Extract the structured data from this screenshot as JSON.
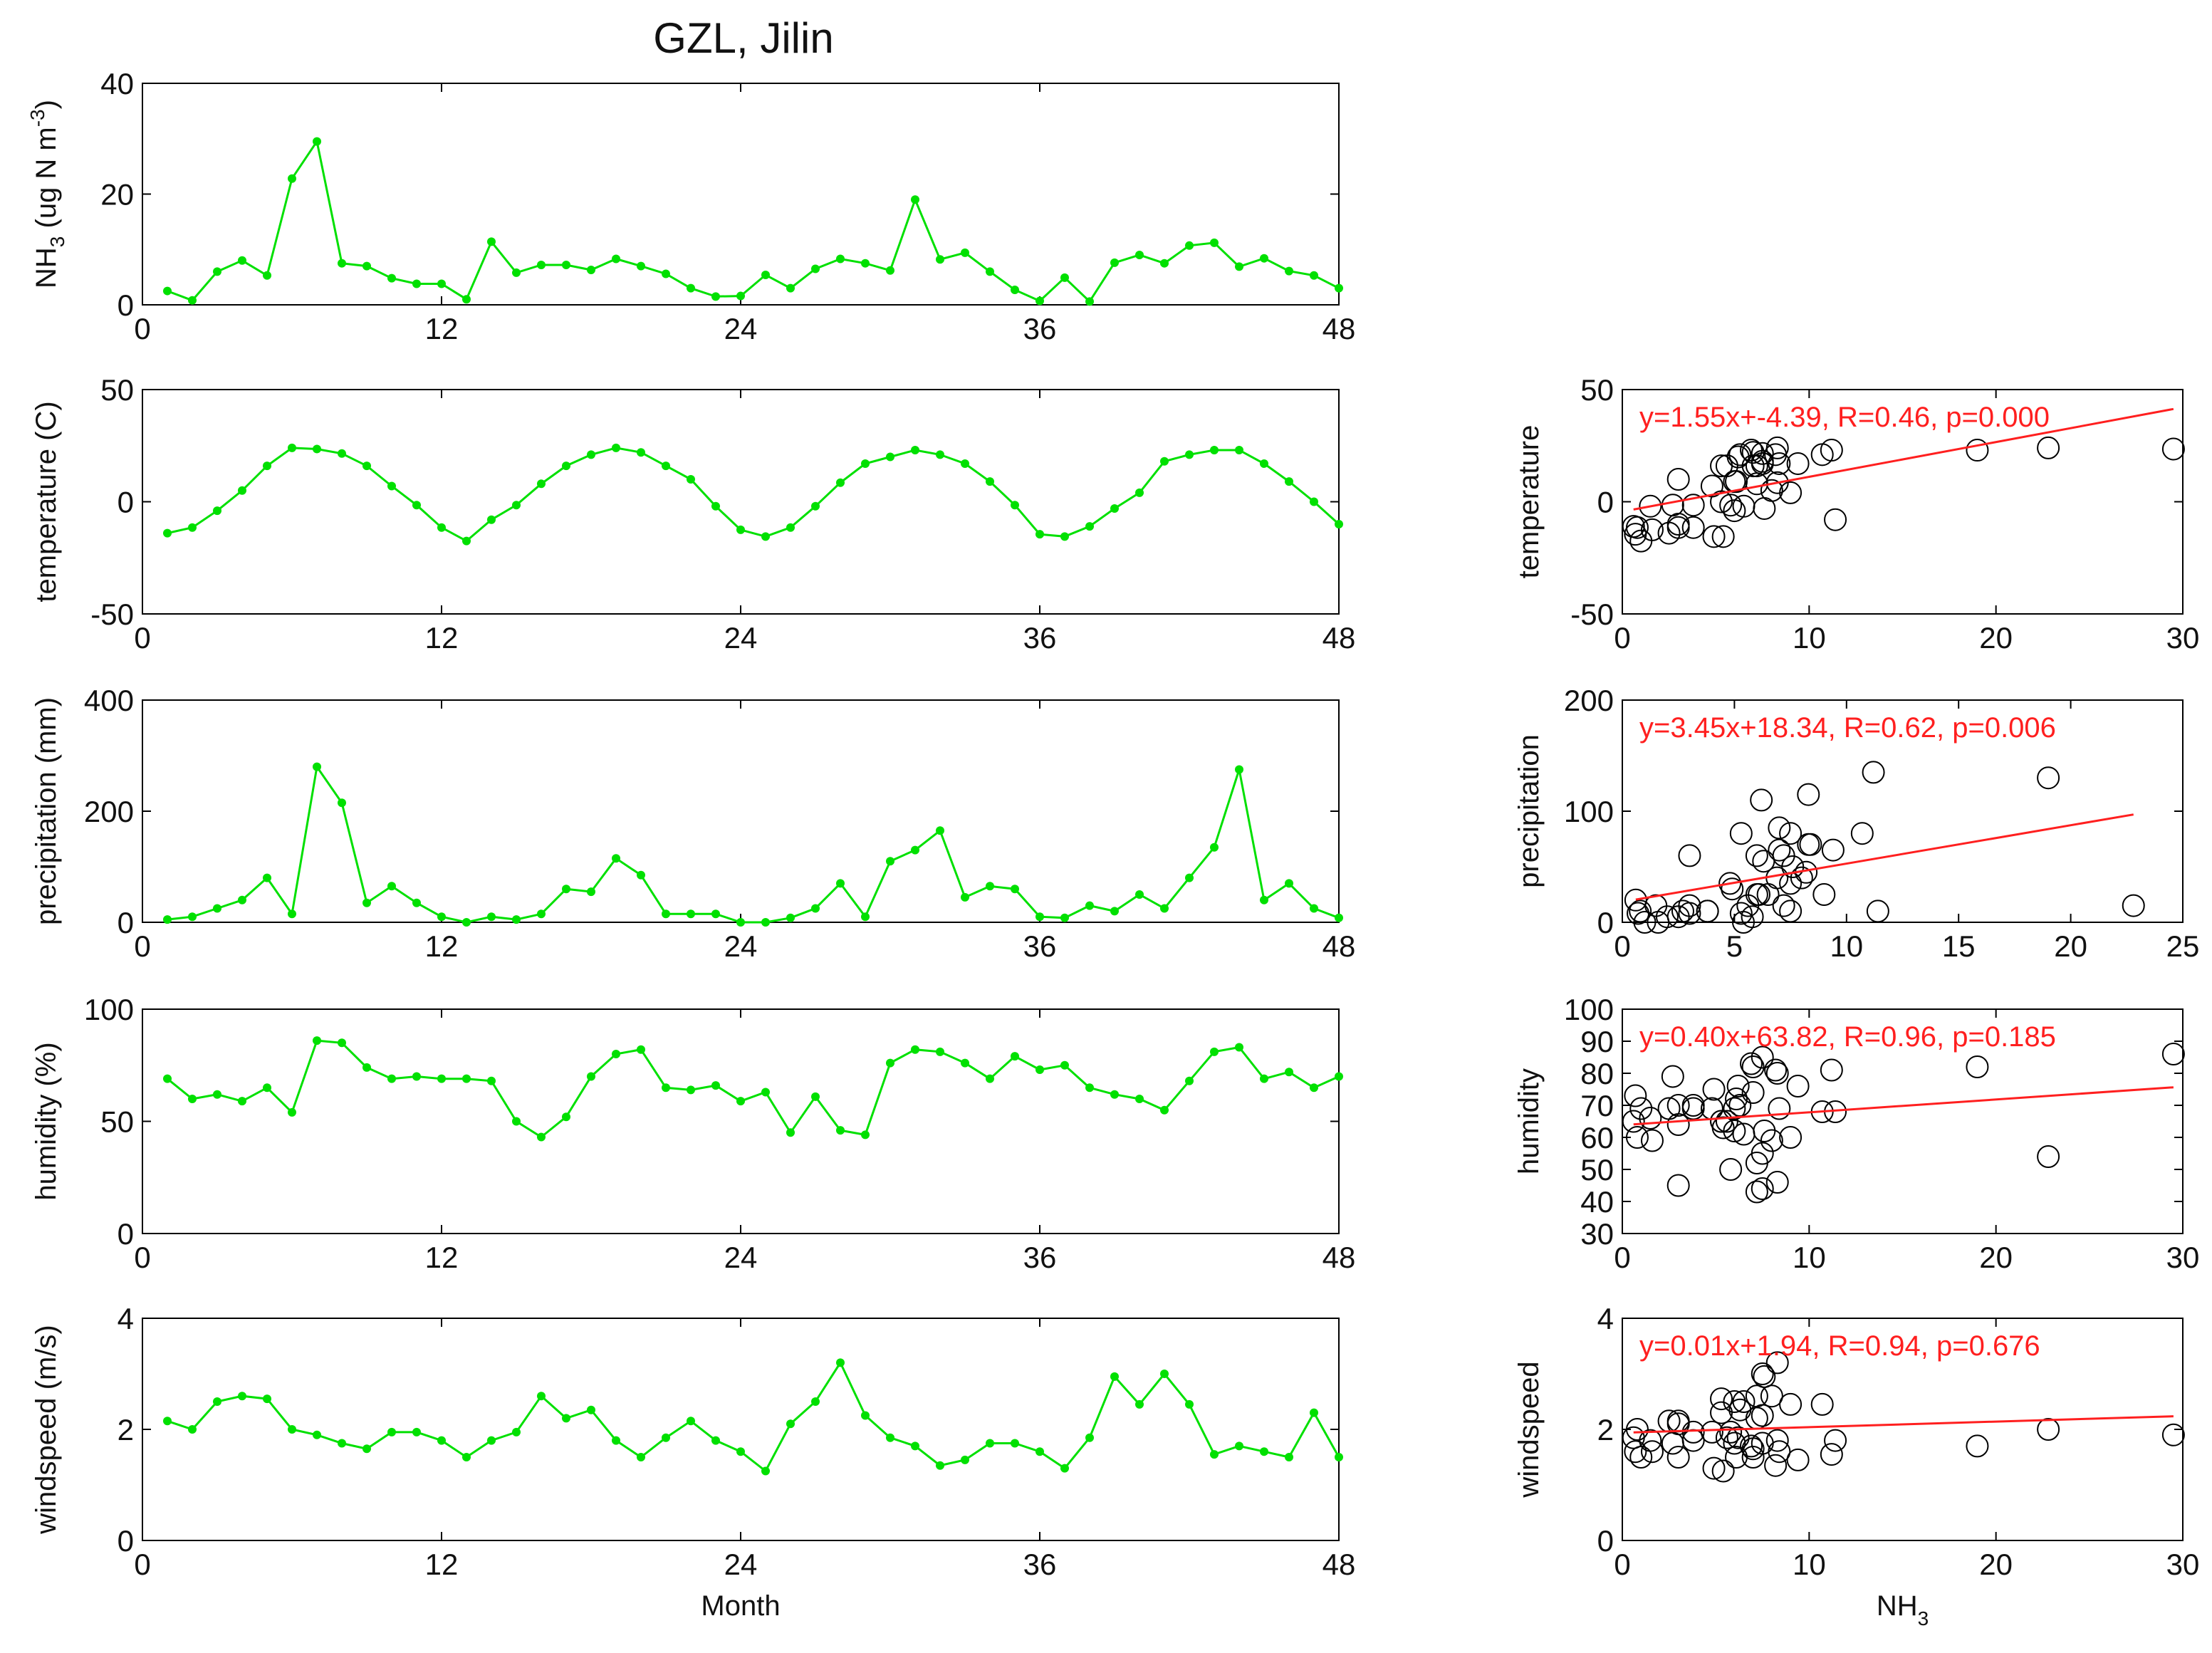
{
  "figure": {
    "title": "GZL, Jilin",
    "colors": {
      "series": "#00e000",
      "fit": "#ff1f1f",
      "scatter": "#000000",
      "axis": "#000000"
    }
  },
  "chart_data": [
    {
      "type": "line",
      "ylabel_main": "NH",
      "ylabel_sub": "3",
      "ylabel_rest": " (ug N m",
      "ylabel_sup": "-3",
      "ylabel_end": ")",
      "xlabel": "",
      "xlim": [
        0,
        48
      ],
      "ylim": [
        0,
        40
      ],
      "xticks": [
        0,
        12,
        24,
        36,
        48
      ],
      "yticks": [
        0,
        20,
        40
      ],
      "x": [
        1,
        2,
        3,
        4,
        5,
        6,
        7,
        8,
        9,
        10,
        11,
        12,
        13,
        14,
        15,
        16,
        17,
        18,
        19,
        20,
        21,
        22,
        23,
        24,
        25,
        26,
        27,
        28,
        29,
        30,
        31,
        32,
        33,
        34,
        35,
        36,
        37,
        38,
        39,
        40,
        41,
        42,
        43,
        44,
        45,
        46,
        47,
        48
      ],
      "values": [
        2.5,
        0.8,
        6,
        8,
        5.3,
        22.8,
        29.5,
        7.5,
        7,
        4.8,
        3.8,
        3.8,
        1,
        11.4,
        5.8,
        7.2,
        7.2,
        6.3,
        8.3,
        7,
        5.6,
        3,
        1.5,
        1.6,
        5.4,
        3,
        6.5,
        8.3,
        7.5,
        6.2,
        19,
        8.2,
        9.4,
        6,
        2.7,
        0.7,
        4.9,
        0.6,
        7.6,
        9,
        7.5,
        10.7,
        11.2,
        6.9,
        8.4,
        6.1,
        5.3,
        3
      ],
      "grid": false
    },
    {
      "type": "line",
      "ylabel": "temperature (C)",
      "xlabel": "",
      "xlim": [
        0,
        48
      ],
      "ylim": [
        -50,
        50
      ],
      "xticks": [
        0,
        12,
        24,
        36,
        48
      ],
      "yticks": [
        -50,
        0,
        50
      ],
      "values": [
        -14,
        -11.5,
        -4,
        5,
        16,
        24,
        23.5,
        21.5,
        16,
        7,
        -1.5,
        -11.5,
        -17.5,
        -8,
        -1.5,
        8,
        16,
        21,
        24,
        22,
        16,
        10,
        -2,
        -12.5,
        -15.5,
        -11.5,
        -2,
        8.5,
        17,
        20,
        23,
        21,
        17,
        9,
        -1.5,
        -14.5,
        -15.5,
        -11,
        -3,
        4,
        18,
        21,
        23,
        23,
        17,
        9,
        0,
        -10
      ],
      "grid": false
    },
    {
      "type": "line",
      "ylabel": "precipitation (mm)",
      "xlabel": "",
      "xlim": [
        0,
        48
      ],
      "ylim": [
        0,
        400
      ],
      "xticks": [
        0,
        12,
        24,
        36,
        48
      ],
      "yticks": [
        0,
        200,
        400
      ],
      "values": [
        5,
        10,
        25,
        40,
        80,
        15,
        280,
        215,
        35,
        65,
        35,
        10,
        0,
        10,
        5,
        15,
        60,
        55,
        115,
        85,
        15,
        15,
        15,
        0,
        0,
        8,
        25,
        70,
        10,
        110,
        130,
        165,
        45,
        65,
        60,
        10,
        8,
        30,
        20,
        50,
        25,
        80,
        135,
        275,
        40,
        70,
        25,
        8
      ],
      "grid": false
    },
    {
      "type": "line",
      "ylabel": "humidity (%)",
      "xlabel": "",
      "xlim": [
        0,
        48
      ],
      "ylim": [
        0,
        100
      ],
      "xticks": [
        0,
        12,
        24,
        36,
        48
      ],
      "yticks": [
        0,
        50,
        100
      ],
      "values": [
        69,
        60,
        62,
        59,
        65,
        54,
        86,
        85,
        74,
        69,
        70,
        69,
        69,
        68,
        50,
        43,
        52,
        70,
        80,
        82,
        65,
        64,
        66,
        59,
        63,
        45,
        61,
        46,
        44,
        76,
        82,
        81,
        76,
        69,
        79,
        73,
        75,
        65,
        62,
        60,
        55,
        68,
        81,
        83,
        69,
        72,
        65,
        70
      ],
      "grid": false
    },
    {
      "type": "line",
      "ylabel": "windspeed (m/s)",
      "xlabel": "Month",
      "xlim": [
        0,
        48
      ],
      "ylim": [
        0,
        4
      ],
      "xticks": [
        0,
        12,
        24,
        36,
        48
      ],
      "yticks": [
        0,
        2,
        4
      ],
      "values": [
        2.15,
        2.0,
        2.5,
        2.6,
        2.55,
        2.0,
        1.9,
        1.75,
        1.65,
        1.95,
        1.95,
        1.8,
        1.5,
        1.8,
        1.95,
        2.6,
        2.2,
        2.35,
        1.8,
        1.5,
        1.85,
        2.15,
        1.8,
        1.6,
        1.25,
        2.1,
        2.5,
        3.2,
        2.25,
        1.85,
        1.7,
        1.35,
        1.45,
        1.75,
        1.75,
        1.6,
        1.3,
        1.85,
        2.95,
        2.45,
        3.0,
        2.45,
        1.55,
        1.7,
        1.6,
        1.5,
        2.3,
        1.5
      ],
      "grid": false
    },
    {
      "type": "scatter",
      "ylabel": "temperature",
      "xlabel": "",
      "xlim": [
        0,
        30
      ],
      "ylim": [
        -50,
        50
      ],
      "xticks": [
        0,
        10,
        20,
        30
      ],
      "yticks": [
        -50,
        0,
        50
      ],
      "fit_label": "y=1.55x+-4.39, R=0.46, p=0.000",
      "fit": {
        "slope": 1.55,
        "intercept": -4.39,
        "x_range": [
          0.6,
          29.5
        ]
      },
      "points": [
        [
          2.5,
          -14
        ],
        [
          0.8,
          -11.5
        ],
        [
          6,
          -4
        ],
        [
          8,
          5
        ],
        [
          5.3,
          16
        ],
        [
          22.8,
          24
        ],
        [
          29.5,
          23.5
        ],
        [
          7.5,
          21.5
        ],
        [
          7,
          16
        ],
        [
          4.8,
          7
        ],
        [
          3.8,
          -1.5
        ],
        [
          3.8,
          -11.5
        ],
        [
          1,
          -17.5
        ],
        [
          11.4,
          -8
        ],
        [
          5.8,
          -1.5
        ],
        [
          7.2,
          8
        ],
        [
          7.2,
          16
        ],
        [
          6.3,
          21
        ],
        [
          8.3,
          24
        ],
        [
          7,
          22
        ],
        [
          5.6,
          16
        ],
        [
          3,
          10
        ],
        [
          1.5,
          -2
        ],
        [
          1.6,
          -12.5
        ],
        [
          5.4,
          -15.5
        ],
        [
          3,
          -11.5
        ],
        [
          6.5,
          -2
        ],
        [
          8.3,
          8.5
        ],
        [
          7.5,
          17
        ],
        [
          6.2,
          20
        ],
        [
          19,
          23
        ],
        [
          8.2,
          21
        ],
        [
          9.4,
          17
        ],
        [
          6,
          9
        ],
        [
          2.7,
          -1.5
        ],
        [
          0.7,
          -14.5
        ],
        [
          4.9,
          -15.5
        ],
        [
          0.6,
          -11
        ],
        [
          7.6,
          -3
        ],
        [
          9,
          4
        ],
        [
          7.5,
          18
        ],
        [
          10.7,
          21
        ],
        [
          11.2,
          23
        ],
        [
          6.9,
          23
        ],
        [
          8.4,
          17
        ],
        [
          6.1,
          9
        ],
        [
          5.3,
          0
        ],
        [
          3,
          -10
        ]
      ]
    },
    {
      "type": "scatter",
      "ylabel": "precipitation",
      "xlabel": "",
      "xlim": [
        0,
        25
      ],
      "ylim": [
        0,
        200
      ],
      "xticks": [
        0,
        5,
        10,
        15,
        20,
        25
      ],
      "yticks": [
        0,
        100,
        200
      ],
      "fit_label": "y=3.45x+18.34, R=0.62, p=0.006",
      "fit": {
        "slope": 3.45,
        "intercept": 18.34,
        "x_range": [
          0.6,
          22.8
        ]
      },
      "points": [
        [
          2.5,
          5
        ],
        [
          0.8,
          10
        ],
        [
          6,
          25
        ],
        [
          8,
          40
        ],
        [
          5.3,
          80
        ],
        [
          22.8,
          15
        ],
        [
          7.5,
          35
        ],
        [
          7,
          65
        ],
        [
          4.8,
          35
        ],
        [
          3.8,
          10
        ],
        [
          3.8,
          10
        ],
        [
          1,
          0
        ],
        [
          11.4,
          10
        ],
        [
          5.8,
          5
        ],
        [
          7.2,
          15
        ],
        [
          7.2,
          60
        ],
        [
          6.3,
          55
        ],
        [
          8.3,
          115
        ],
        [
          7,
          85
        ],
        [
          5.6,
          15
        ],
        [
          3,
          15
        ],
        [
          1.5,
          15
        ],
        [
          1.6,
          0
        ],
        [
          5.4,
          0
        ],
        [
          3,
          8
        ],
        [
          6.5,
          25
        ],
        [
          8.3,
          70
        ],
        [
          7.5,
          10
        ],
        [
          6.2,
          110
        ],
        [
          19,
          130
        ],
        [
          8.2,
          45
        ],
        [
          9.4,
          65
        ],
        [
          6,
          60
        ],
        [
          2.7,
          10
        ],
        [
          0.7,
          8
        ],
        [
          4.9,
          30
        ],
        [
          0.6,
          20
        ],
        [
          7.6,
          50
        ],
        [
          9,
          25
        ],
        [
          7.5,
          80
        ],
        [
          10.7,
          80
        ],
        [
          11.2,
          135
        ],
        [
          6.9,
          40
        ],
        [
          8.4,
          70
        ],
        [
          6.1,
          25
        ],
        [
          5.3,
          8
        ],
        [
          3,
          60
        ],
        [
          2,
          5
        ]
      ]
    },
    {
      "type": "scatter",
      "ylabel": "humidity",
      "xlabel": "",
      "xlim": [
        0,
        30
      ],
      "ylim": [
        30,
        100
      ],
      "xticks": [
        0,
        10,
        20,
        30
      ],
      "yticks": [
        30,
        40,
        50,
        60,
        70,
        80,
        90,
        100
      ],
      "fit_label": "y=0.40x+63.82, R=0.96, p=0.185",
      "fit": {
        "slope": 0.4,
        "intercept": 63.82,
        "x_range": [
          0.6,
          29.5
        ]
      },
      "points": [
        [
          2.5,
          69
        ],
        [
          0.8,
          60
        ],
        [
          6,
          62
        ],
        [
          8,
          59
        ],
        [
          5.3,
          65
        ],
        [
          22.8,
          54
        ],
        [
          29.5,
          86
        ],
        [
          7.5,
          85
        ],
        [
          7,
          74
        ],
        [
          4.8,
          69
        ],
        [
          3.8,
          70
        ],
        [
          3.8,
          69
        ],
        [
          1,
          69
        ],
        [
          11.4,
          68
        ],
        [
          5.8,
          50
        ],
        [
          7.2,
          43
        ],
        [
          7.2,
          52
        ],
        [
          6.3,
          70
        ],
        [
          8.3,
          80
        ],
        [
          7,
          82
        ],
        [
          5.6,
          65
        ],
        [
          3,
          64
        ],
        [
          1.5,
          66
        ],
        [
          1.6,
          59
        ],
        [
          5.4,
          63
        ],
        [
          3,
          45
        ],
        [
          6.5,
          61
        ],
        [
          8.3,
          46
        ],
        [
          7.5,
          44
        ],
        [
          6.2,
          76
        ],
        [
          19,
          82
        ],
        [
          8.2,
          81
        ],
        [
          9.4,
          76
        ],
        [
          6,
          69
        ],
        [
          2.7,
          79
        ],
        [
          0.7,
          73
        ],
        [
          4.9,
          75
        ],
        [
          0.6,
          65
        ],
        [
          7.6,
          62
        ],
        [
          9,
          60
        ],
        [
          7.5,
          55
        ],
        [
          10.7,
          68
        ],
        [
          11.2,
          81
        ],
        [
          6.9,
          83
        ],
        [
          8.4,
          69
        ],
        [
          6.1,
          72
        ],
        [
          5.3,
          65
        ],
        [
          3,
          70
        ]
      ]
    },
    {
      "type": "scatter",
      "ylabel": "windspeed",
      "xlabel_main": "NH",
      "xlabel_sub": "3",
      "xlim": [
        0,
        30
      ],
      "ylim": [
        0,
        4
      ],
      "xticks": [
        0,
        10,
        20,
        30
      ],
      "yticks": [
        0,
        2,
        4
      ],
      "fit_label": "y=0.01x+1.94, R=0.94, p=0.676",
      "fit": {
        "slope": 0.01,
        "intercept": 1.94,
        "x_range": [
          0.6,
          29.5
        ]
      },
      "points": [
        [
          2.5,
          2.15
        ],
        [
          0.8,
          2.0
        ],
        [
          6,
          2.5
        ],
        [
          8,
          2.6
        ],
        [
          5.3,
          2.55
        ],
        [
          22.8,
          2.0
        ],
        [
          29.5,
          1.9
        ],
        [
          7.5,
          1.75
        ],
        [
          7,
          1.65
        ],
        [
          4.8,
          1.95
        ],
        [
          3.8,
          1.95
        ],
        [
          3.8,
          1.8
        ],
        [
          1,
          1.5
        ],
        [
          11.4,
          1.8
        ],
        [
          5.8,
          1.95
        ],
        [
          7.2,
          2.6
        ],
        [
          7.2,
          2.2
        ],
        [
          6.3,
          2.35
        ],
        [
          8.3,
          1.8
        ],
        [
          7,
          1.5
        ],
        [
          5.6,
          1.85
        ],
        [
          3,
          2.15
        ],
        [
          1.5,
          1.8
        ],
        [
          1.6,
          1.6
        ],
        [
          5.4,
          1.25
        ],
        [
          3,
          2.1
        ],
        [
          6.5,
          2.5
        ],
        [
          8.3,
          3.2
        ],
        [
          7.5,
          2.25
        ],
        [
          6.2,
          1.85
        ],
        [
          19,
          1.7
        ],
        [
          8.2,
          1.35
        ],
        [
          9.4,
          1.45
        ],
        [
          6,
          1.75
        ],
        [
          2.7,
          1.75
        ],
        [
          0.7,
          1.6
        ],
        [
          4.9,
          1.3
        ],
        [
          0.6,
          1.85
        ],
        [
          7.6,
          2.95
        ],
        [
          9,
          2.45
        ],
        [
          7.5,
          3.0
        ],
        [
          10.7,
          2.45
        ],
        [
          11.2,
          1.55
        ],
        [
          6.9,
          1.7
        ],
        [
          8.4,
          1.6
        ],
        [
          6.1,
          1.5
        ],
        [
          5.3,
          2.3
        ],
        [
          3,
          1.5
        ]
      ]
    }
  ]
}
